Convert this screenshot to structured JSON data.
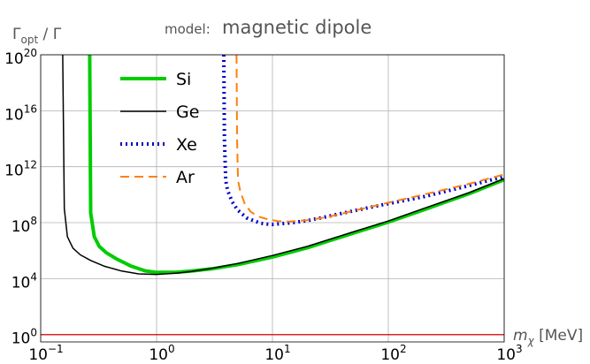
{
  "chart_data": {
    "type": "line",
    "title_prefix": "model:",
    "title": "magnetic dipole",
    "ylabel": {
      "base": "Γ",
      "sub": "opt",
      "rest": " / Γ"
    },
    "xlabel": {
      "sym": "m",
      "sub": "χ",
      "unit": " [MeV]"
    },
    "x_scale": "log",
    "y_scale": "log",
    "xlim": [
      0.1,
      1000
    ],
    "ylim": [
      0.3,
      1e+20
    ],
    "x_ticks": [
      {
        "value": 0.1,
        "base": "10",
        "exp": "−1"
      },
      {
        "value": 1,
        "base": "10",
        "exp": "0"
      },
      {
        "value": 10,
        "base": "10",
        "exp": "1"
      },
      {
        "value": 100,
        "base": "10",
        "exp": "2"
      },
      {
        "value": 1000,
        "base": "10",
        "exp": "3"
      }
    ],
    "y_ticks": [
      {
        "value": 1,
        "base": "10",
        "exp": "0"
      },
      {
        "value": 10000,
        "base": "10",
        "exp": "4"
      },
      {
        "value": 100000000,
        "base": "10",
        "exp": "8"
      },
      {
        "value": 1000000000000.0,
        "base": "10",
        "exp": "12"
      },
      {
        "value": 1e+16,
        "base": "10",
        "exp": "16"
      },
      {
        "value": 1e+20,
        "base": "10",
        "exp": "20"
      }
    ],
    "grid": true,
    "legend_position": "top-left",
    "reference_line": {
      "y": 1,
      "color": "#d62728"
    },
    "series": [
      {
        "name": "Si",
        "color": "#00cc00",
        "width": 4,
        "dash": "",
        "x": [
          0.265,
          0.27,
          0.29,
          0.32,
          0.37,
          0.45,
          0.6,
          0.8,
          1.0,
          1.5,
          2,
          3,
          5,
          10,
          20,
          50,
          100,
          200,
          500,
          1000
        ],
        "y": [
          1e+20,
          500000000.0,
          10000000.0,
          2000000.0,
          700000.0,
          260000.0,
          80000.0,
          36000.0,
          28000.0,
          29000.0,
          35000.0,
          50000.0,
          100000.0,
          350000.0,
          1600000.0,
          18000000.0,
          110000000.0,
          800000000.0,
          12000000000.0,
          120000000000.0
        ]
      },
      {
        "name": "Ge",
        "color": "#000000",
        "width": 1.5,
        "dash": "",
        "x": [
          0.155,
          0.16,
          0.17,
          0.19,
          0.22,
          0.27,
          0.35,
          0.5,
          0.7,
          1.0,
          1.5,
          2,
          3,
          5,
          10,
          20,
          50,
          100,
          200,
          500,
          1000
        ],
        "y": [
          1e+20,
          1000000000.0,
          10000000.0,
          1500000.0,
          500000.0,
          200000.0,
          80000.0,
          35000.0,
          22000.0,
          20000.0,
          25000.0,
          33000.0,
          55000.0,
          120000.0,
          450000.0,
          2000000.0,
          22000000.0,
          130000000.0,
          1000000000.0,
          14000000000.0,
          140000000000.0
        ]
      },
      {
        "name": "Xe",
        "color": "#0000cc",
        "width": 4,
        "dash": "2 4",
        "x": [
          3.8,
          3.85,
          3.95,
          4.1,
          4.5,
          5,
          6,
          7,
          8,
          9,
          10,
          12,
          15,
          20,
          30,
          50,
          100,
          200,
          500,
          1000
        ],
        "y": [
          1e+20,
          100000000000000.0,
          100000000000.0,
          20000000000.0,
          3000000000.0,
          800000000.0,
          220000000.0,
          130000000.0,
          90000000.0,
          80000000.0,
          75000000.0,
          85000000.0,
          100000000.0,
          140000000.0,
          280000000.0,
          700000000.0,
          2300000000.0,
          7000000000.0,
          45000000000.0,
          200000000000.0
        ]
      },
      {
        "name": "Ar",
        "color": "#ff7f0e",
        "width": 2,
        "dash": "10 6",
        "x": [
          4.9,
          4.95,
          5.05,
          5.3,
          5.8,
          6.5,
          7.5,
          9,
          11,
          14,
          20,
          30,
          50,
          100,
          200,
          500,
          1000
        ],
        "y": [
          1e+20,
          100000000000000.0,
          100000000000.0,
          15000000000.0,
          2000000000.0,
          600000000.0,
          280000000.0,
          180000000.0,
          130000000.0,
          120000000.0,
          150000000.0,
          250000000.0,
          700000000.0,
          2700000000.0,
          10000000000.0,
          60000000000.0,
          280000000000.0
        ]
      }
    ]
  }
}
